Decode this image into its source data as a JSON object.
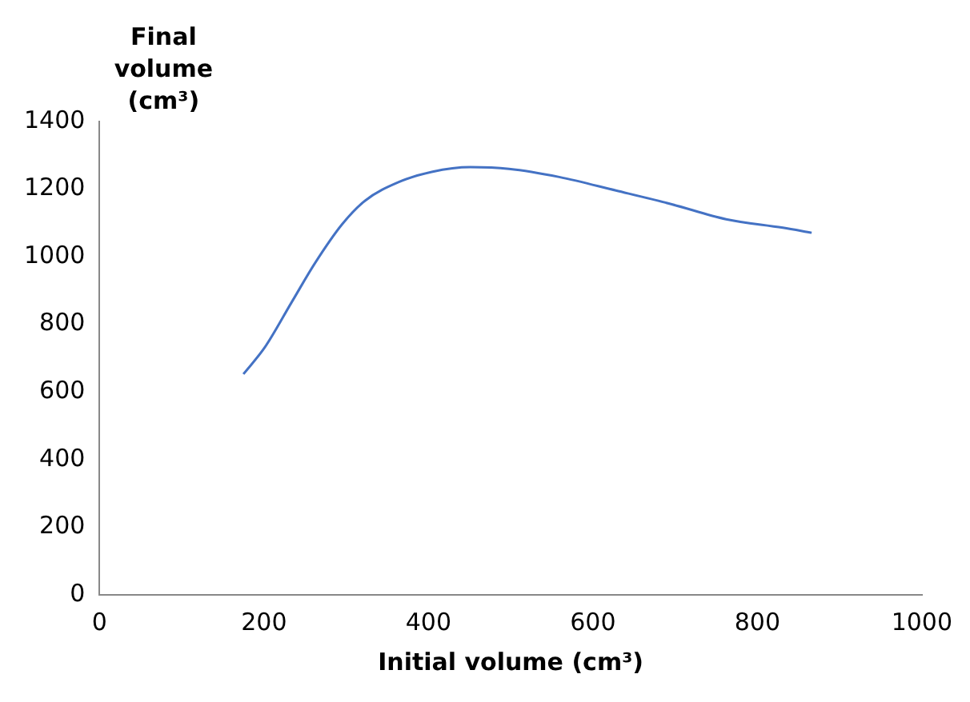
{
  "chart_data": {
    "type": "line",
    "xlabel": "Initial volume (cm³)",
    "ylabel": "Final volume (cm³)",
    "x": [
      175,
      201,
      234,
      262,
      295,
      323,
      364,
      404,
      451,
      498,
      559,
      628,
      695,
      762,
      831,
      866
    ],
    "series": [
      {
        "color": "#4472c4",
        "values": [
          653,
          732,
          867,
          981,
          1096,
          1166,
          1221,
          1251,
          1265,
          1260,
          1236,
          1196,
          1156,
          1111,
          1086,
          1071
        ]
      }
    ],
    "xlim": [
      0,
      1000
    ],
    "xticks": [
      0,
      200,
      400,
      600,
      800,
      1000
    ],
    "ylim": [
      0,
      1400
    ],
    "yticks": [
      0,
      200,
      400,
      600,
      800,
      1000,
      1200,
      1400
    ],
    "grid": false,
    "legend": false,
    "marker": "none",
    "line_style": "solid"
  }
}
